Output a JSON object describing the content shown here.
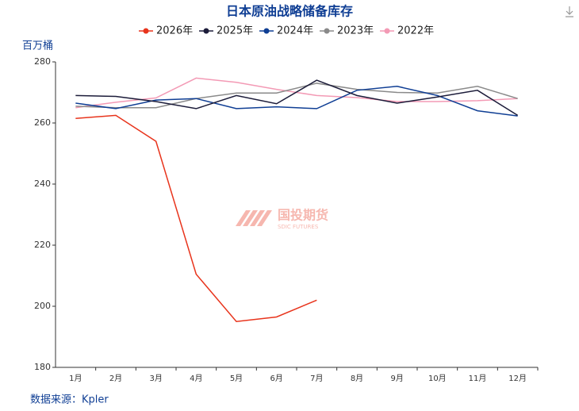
{
  "chart_data": {
    "type": "line",
    "title": "日本原油战略储备库存",
    "y_label": "百万桶",
    "source": "数据来源：Kpler",
    "watermark": {
      "name": "国投期货",
      "subname": "SDIC FUTURES"
    },
    "categories": [
      "1月",
      "2月",
      "3月",
      "4月",
      "5月",
      "6月",
      "7月",
      "8月",
      "9月",
      "10月",
      "11月",
      "12月"
    ],
    "series": [
      {
        "name": "2026年",
        "color": "#e8341c",
        "values": [
          261.5,
          262.5,
          254,
          210.5,
          195,
          196.5,
          202,
          null,
          null,
          null,
          null,
          null
        ]
      },
      {
        "name": "2025年",
        "color": "#1c1c3a",
        "values": [
          269,
          268.7,
          267,
          264.7,
          269,
          266.3,
          274,
          269,
          266.5,
          268.5,
          270.7,
          262.5
        ]
      },
      {
        "name": "2024年",
        "color": "#0f3e94",
        "values": [
          266.5,
          264.7,
          267.5,
          268,
          264.7,
          265.3,
          264.7,
          270.7,
          272,
          269,
          264,
          262.3
        ]
      },
      {
        "name": "2023年",
        "color": "#8a8a8a",
        "values": [
          265.5,
          265,
          265,
          268,
          269.8,
          269.8,
          273,
          271,
          270,
          269.8,
          272,
          268
        ]
      },
      {
        "name": "2022年",
        "color": "#f39ab5",
        "values": [
          265,
          266.8,
          268.2,
          274.7,
          273.3,
          271,
          269,
          268.3,
          267,
          267,
          267.3,
          268
        ]
      }
    ],
    "ylim": [
      180,
      280
    ],
    "yticks": [
      180,
      200,
      220,
      240,
      260,
      280
    ],
    "legend": "top"
  }
}
